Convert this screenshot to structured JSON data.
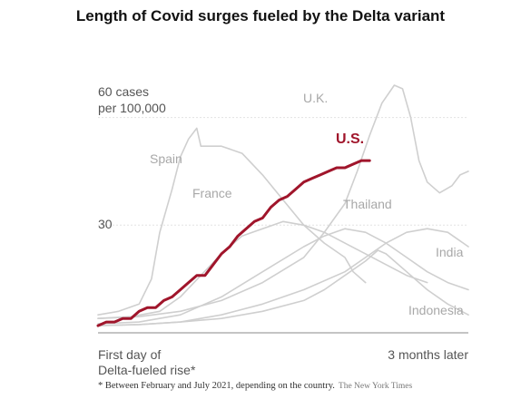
{
  "colors": {
    "us": "#a0152b",
    "other": "#cfcfcf",
    "grid": "#e3e3e3",
    "axis": "#888888"
  },
  "chart_data": {
    "type": "line",
    "title": "Length of Covid surges fueled by the Delta variant",
    "y_tick_labels": [
      "60 cases",
      "per 100,000",
      "30"
    ],
    "y_ticks": [
      30,
      60
    ],
    "ylim": [
      0,
      70
    ],
    "xlim": [
      0,
      90
    ],
    "x_tick_labels": {
      "start_line1": "First day of",
      "start_line2": "Delta-fueled rise*",
      "end": "3 months later"
    },
    "footnote": "* Between February and July 2021, depending on the country.",
    "credit": "The New York Times",
    "grid": true,
    "highlight": "U.S.",
    "series": [
      {
        "name": "U.K.",
        "values": [
          [
            0,
            4
          ],
          [
            10,
            4.5
          ],
          [
            20,
            6
          ],
          [
            30,
            9
          ],
          [
            40,
            14
          ],
          [
            50,
            21
          ],
          [
            55,
            28
          ],
          [
            60,
            36
          ],
          [
            63,
            45
          ],
          [
            66,
            55
          ],
          [
            69,
            64
          ],
          [
            72,
            69
          ],
          [
            74,
            68
          ],
          [
            76,
            60
          ],
          [
            78,
            48
          ],
          [
            80,
            42
          ],
          [
            83,
            39
          ],
          [
            86,
            41
          ],
          [
            88,
            44
          ],
          [
            90,
            45
          ]
        ]
      },
      {
        "name": "Spain",
        "values": [
          [
            0,
            5
          ],
          [
            5,
            6
          ],
          [
            10,
            8
          ],
          [
            13,
            15
          ],
          [
            15,
            28
          ],
          [
            18,
            40
          ],
          [
            20,
            49
          ],
          [
            22,
            54
          ],
          [
            24,
            57
          ],
          [
            25,
            52
          ],
          [
            28,
            52
          ],
          [
            30,
            52
          ],
          [
            35,
            50
          ],
          [
            40,
            44
          ],
          [
            45,
            37
          ],
          [
            50,
            30
          ],
          [
            55,
            25
          ],
          [
            60,
            21
          ],
          [
            62,
            17
          ],
          [
            65,
            14
          ]
        ]
      },
      {
        "name": "France",
        "values": [
          [
            0,
            4
          ],
          [
            8,
            4.5
          ],
          [
            15,
            6
          ],
          [
            20,
            10
          ],
          [
            25,
            16
          ],
          [
            30,
            22
          ],
          [
            35,
            27
          ],
          [
            40,
            29
          ],
          [
            45,
            31
          ],
          [
            50,
            30
          ],
          [
            55,
            28
          ],
          [
            60,
            25
          ],
          [
            65,
            22
          ],
          [
            70,
            19
          ],
          [
            75,
            16
          ],
          [
            80,
            14
          ]
        ]
      },
      {
        "name": "Thailand",
        "values": [
          [
            0,
            2.5
          ],
          [
            10,
            3
          ],
          [
            20,
            5
          ],
          [
            30,
            10
          ],
          [
            40,
            17
          ],
          [
            50,
            24
          ],
          [
            55,
            27
          ],
          [
            60,
            29
          ],
          [
            65,
            28
          ],
          [
            70,
            25
          ],
          [
            75,
            21
          ],
          [
            80,
            17
          ],
          [
            85,
            14
          ],
          [
            90,
            12
          ]
        ]
      },
      {
        "name": "India",
        "values": [
          [
            0,
            2
          ],
          [
            10,
            2.3
          ],
          [
            20,
            3
          ],
          [
            30,
            5
          ],
          [
            40,
            8
          ],
          [
            50,
            12
          ],
          [
            60,
            17
          ],
          [
            65,
            21
          ],
          [
            70,
            25
          ],
          [
            75,
            28
          ],
          [
            80,
            29
          ],
          [
            85,
            28
          ],
          [
            90,
            24
          ]
        ]
      },
      {
        "name": "Indonesia",
        "values": [
          [
            0,
            2
          ],
          [
            10,
            2.3
          ],
          [
            20,
            3
          ],
          [
            30,
            4
          ],
          [
            40,
            6
          ],
          [
            50,
            9
          ],
          [
            55,
            12
          ],
          [
            60,
            16
          ],
          [
            65,
            20
          ],
          [
            68,
            23
          ],
          [
            70,
            22
          ],
          [
            75,
            17
          ],
          [
            80,
            12
          ],
          [
            85,
            8
          ],
          [
            90,
            5
          ]
        ]
      },
      {
        "name": "U.S.",
        "values": [
          [
            0,
            2
          ],
          [
            2,
            3
          ],
          [
            4,
            3
          ],
          [
            6,
            4
          ],
          [
            8,
            4
          ],
          [
            10,
            6
          ],
          [
            12,
            7
          ],
          [
            14,
            7
          ],
          [
            16,
            9
          ],
          [
            18,
            10
          ],
          [
            20,
            12
          ],
          [
            22,
            14
          ],
          [
            24,
            16
          ],
          [
            26,
            16
          ],
          [
            28,
            19
          ],
          [
            30,
            22
          ],
          [
            32,
            24
          ],
          [
            34,
            27
          ],
          [
            36,
            29
          ],
          [
            38,
            31
          ],
          [
            40,
            32
          ],
          [
            42,
            35
          ],
          [
            44,
            37
          ],
          [
            46,
            38
          ],
          [
            48,
            40
          ],
          [
            50,
            42
          ],
          [
            52,
            43
          ],
          [
            54,
            44
          ],
          [
            56,
            45
          ],
          [
            58,
            46
          ],
          [
            60,
            46
          ],
          [
            62,
            47
          ],
          [
            64,
            48
          ],
          [
            66,
            48
          ]
        ]
      }
    ]
  }
}
